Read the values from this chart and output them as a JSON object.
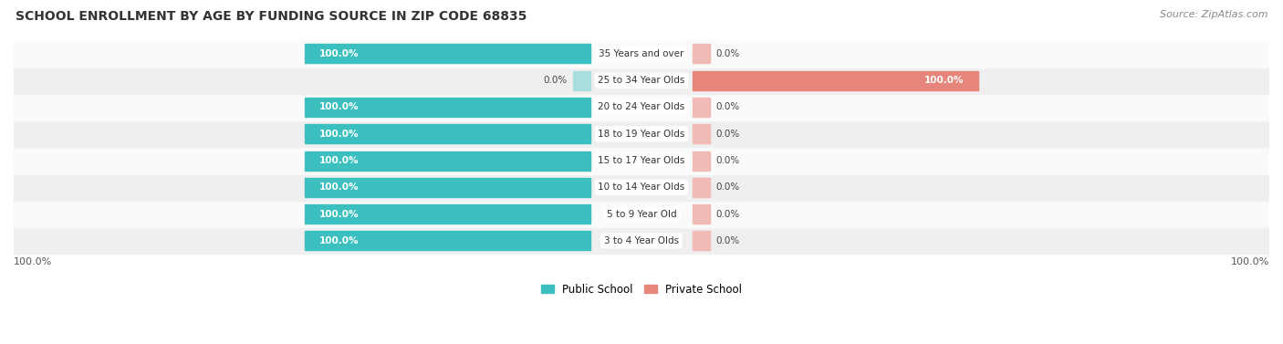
{
  "title": "SCHOOL ENROLLMENT BY AGE BY FUNDING SOURCE IN ZIP CODE 68835",
  "source": "Source: ZipAtlas.com",
  "categories": [
    "3 to 4 Year Olds",
    "5 to 9 Year Old",
    "10 to 14 Year Olds",
    "15 to 17 Year Olds",
    "18 to 19 Year Olds",
    "20 to 24 Year Olds",
    "25 to 34 Year Olds",
    "35 Years and over"
  ],
  "public_values": [
    100.0,
    100.0,
    100.0,
    100.0,
    100.0,
    100.0,
    0.0,
    100.0
  ],
  "private_values": [
    0.0,
    0.0,
    0.0,
    0.0,
    0.0,
    0.0,
    100.0,
    0.0
  ],
  "public_color": "#3bbfbf",
  "private_color": "#e8857a",
  "public_color_light": "#a8dede",
  "private_color_light": "#f0bab5",
  "row_bg_even": "#efefef",
  "row_bg_odd": "#fafafa",
  "x_left_label": "100.0%",
  "x_right_label": "100.0%",
  "legend_public": "Public School",
  "legend_private": "Private School"
}
